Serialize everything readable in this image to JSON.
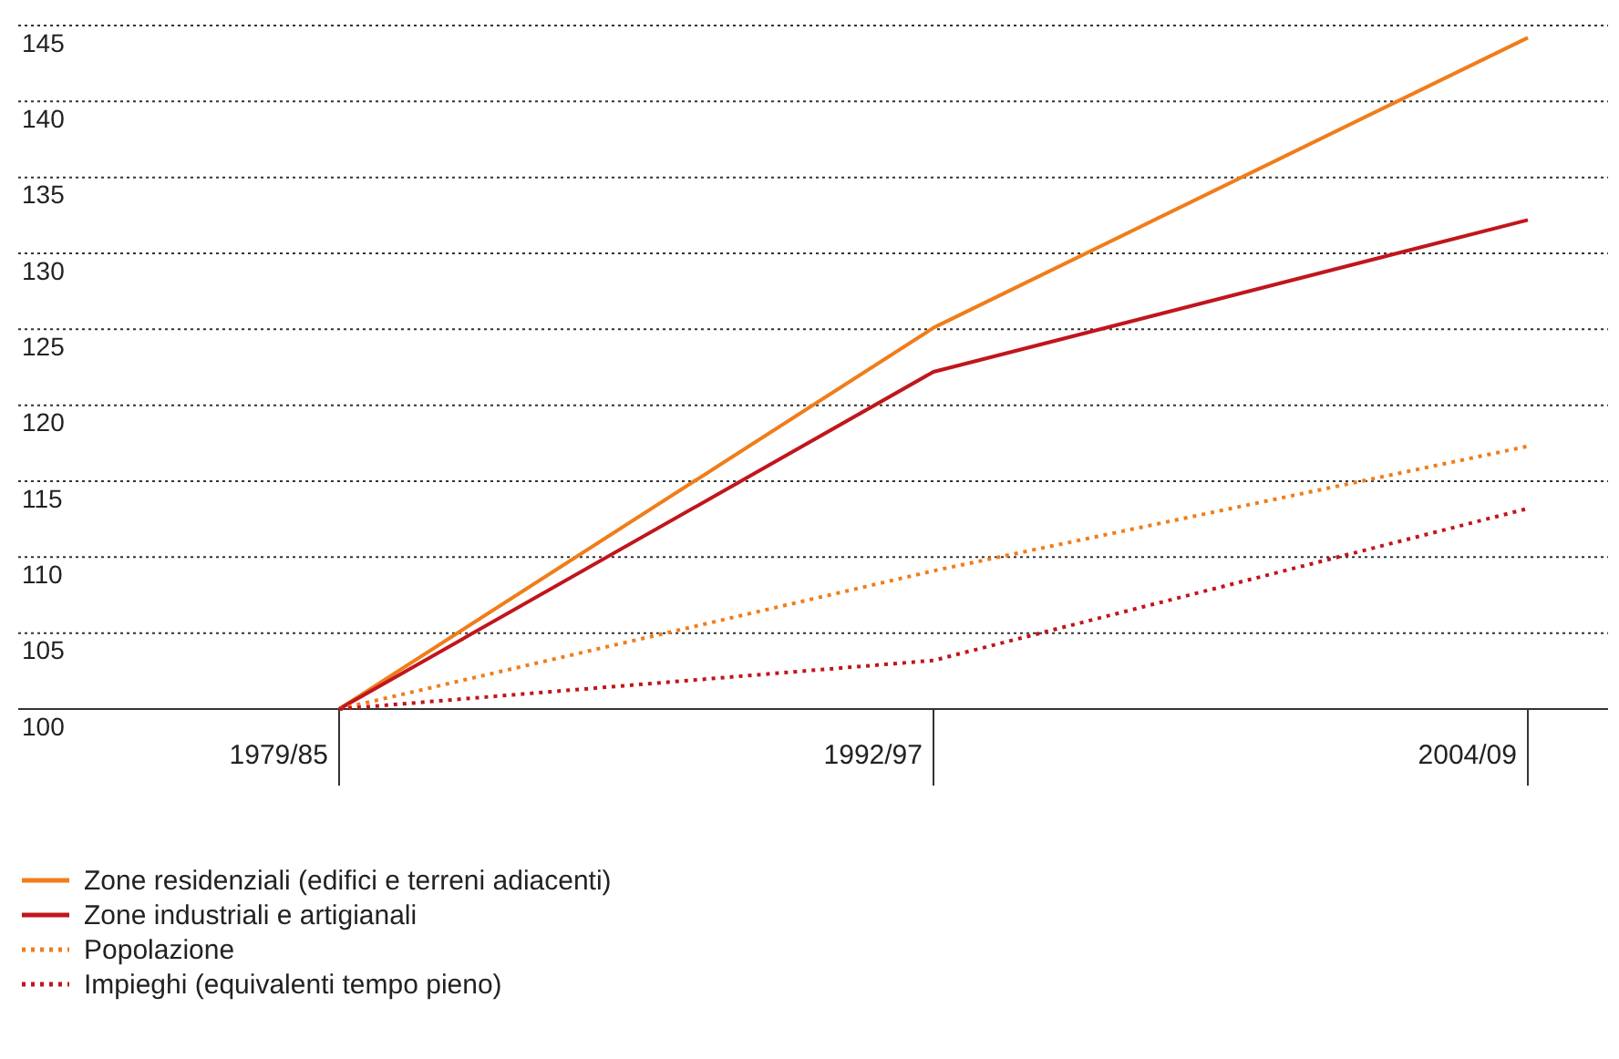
{
  "chart_data": {
    "type": "line",
    "categories": [
      "1979/85",
      "1992/97",
      "2004/09"
    ],
    "series": [
      {
        "name": "Zone residenziali (edifici e terreni adiacenti)",
        "color": "#f07d1a",
        "values": [
          100,
          125.1,
          144.2
        ],
        "line_style": "solid"
      },
      {
        "name": "Zone industriali e artigianali",
        "color": "#c0161c",
        "values": [
          100,
          122.2,
          132.2
        ],
        "line_style": "solid"
      },
      {
        "name": "Popolazione",
        "color": "#f07d1a",
        "values": [
          100,
          109.1,
          117.3
        ],
        "line_style": "dotted"
      },
      {
        "name": "Impieghi (equivalenti tempo pieno)",
        "color": "#c0161c",
        "values": [
          100,
          103.2,
          113.2
        ],
        "line_style": "dotted"
      }
    ],
    "ylim": [
      100,
      145
    ],
    "yticks": [
      100,
      105,
      110,
      115,
      120,
      125,
      130,
      135,
      140,
      145
    ],
    "grid": "y",
    "legend": "bottom"
  }
}
